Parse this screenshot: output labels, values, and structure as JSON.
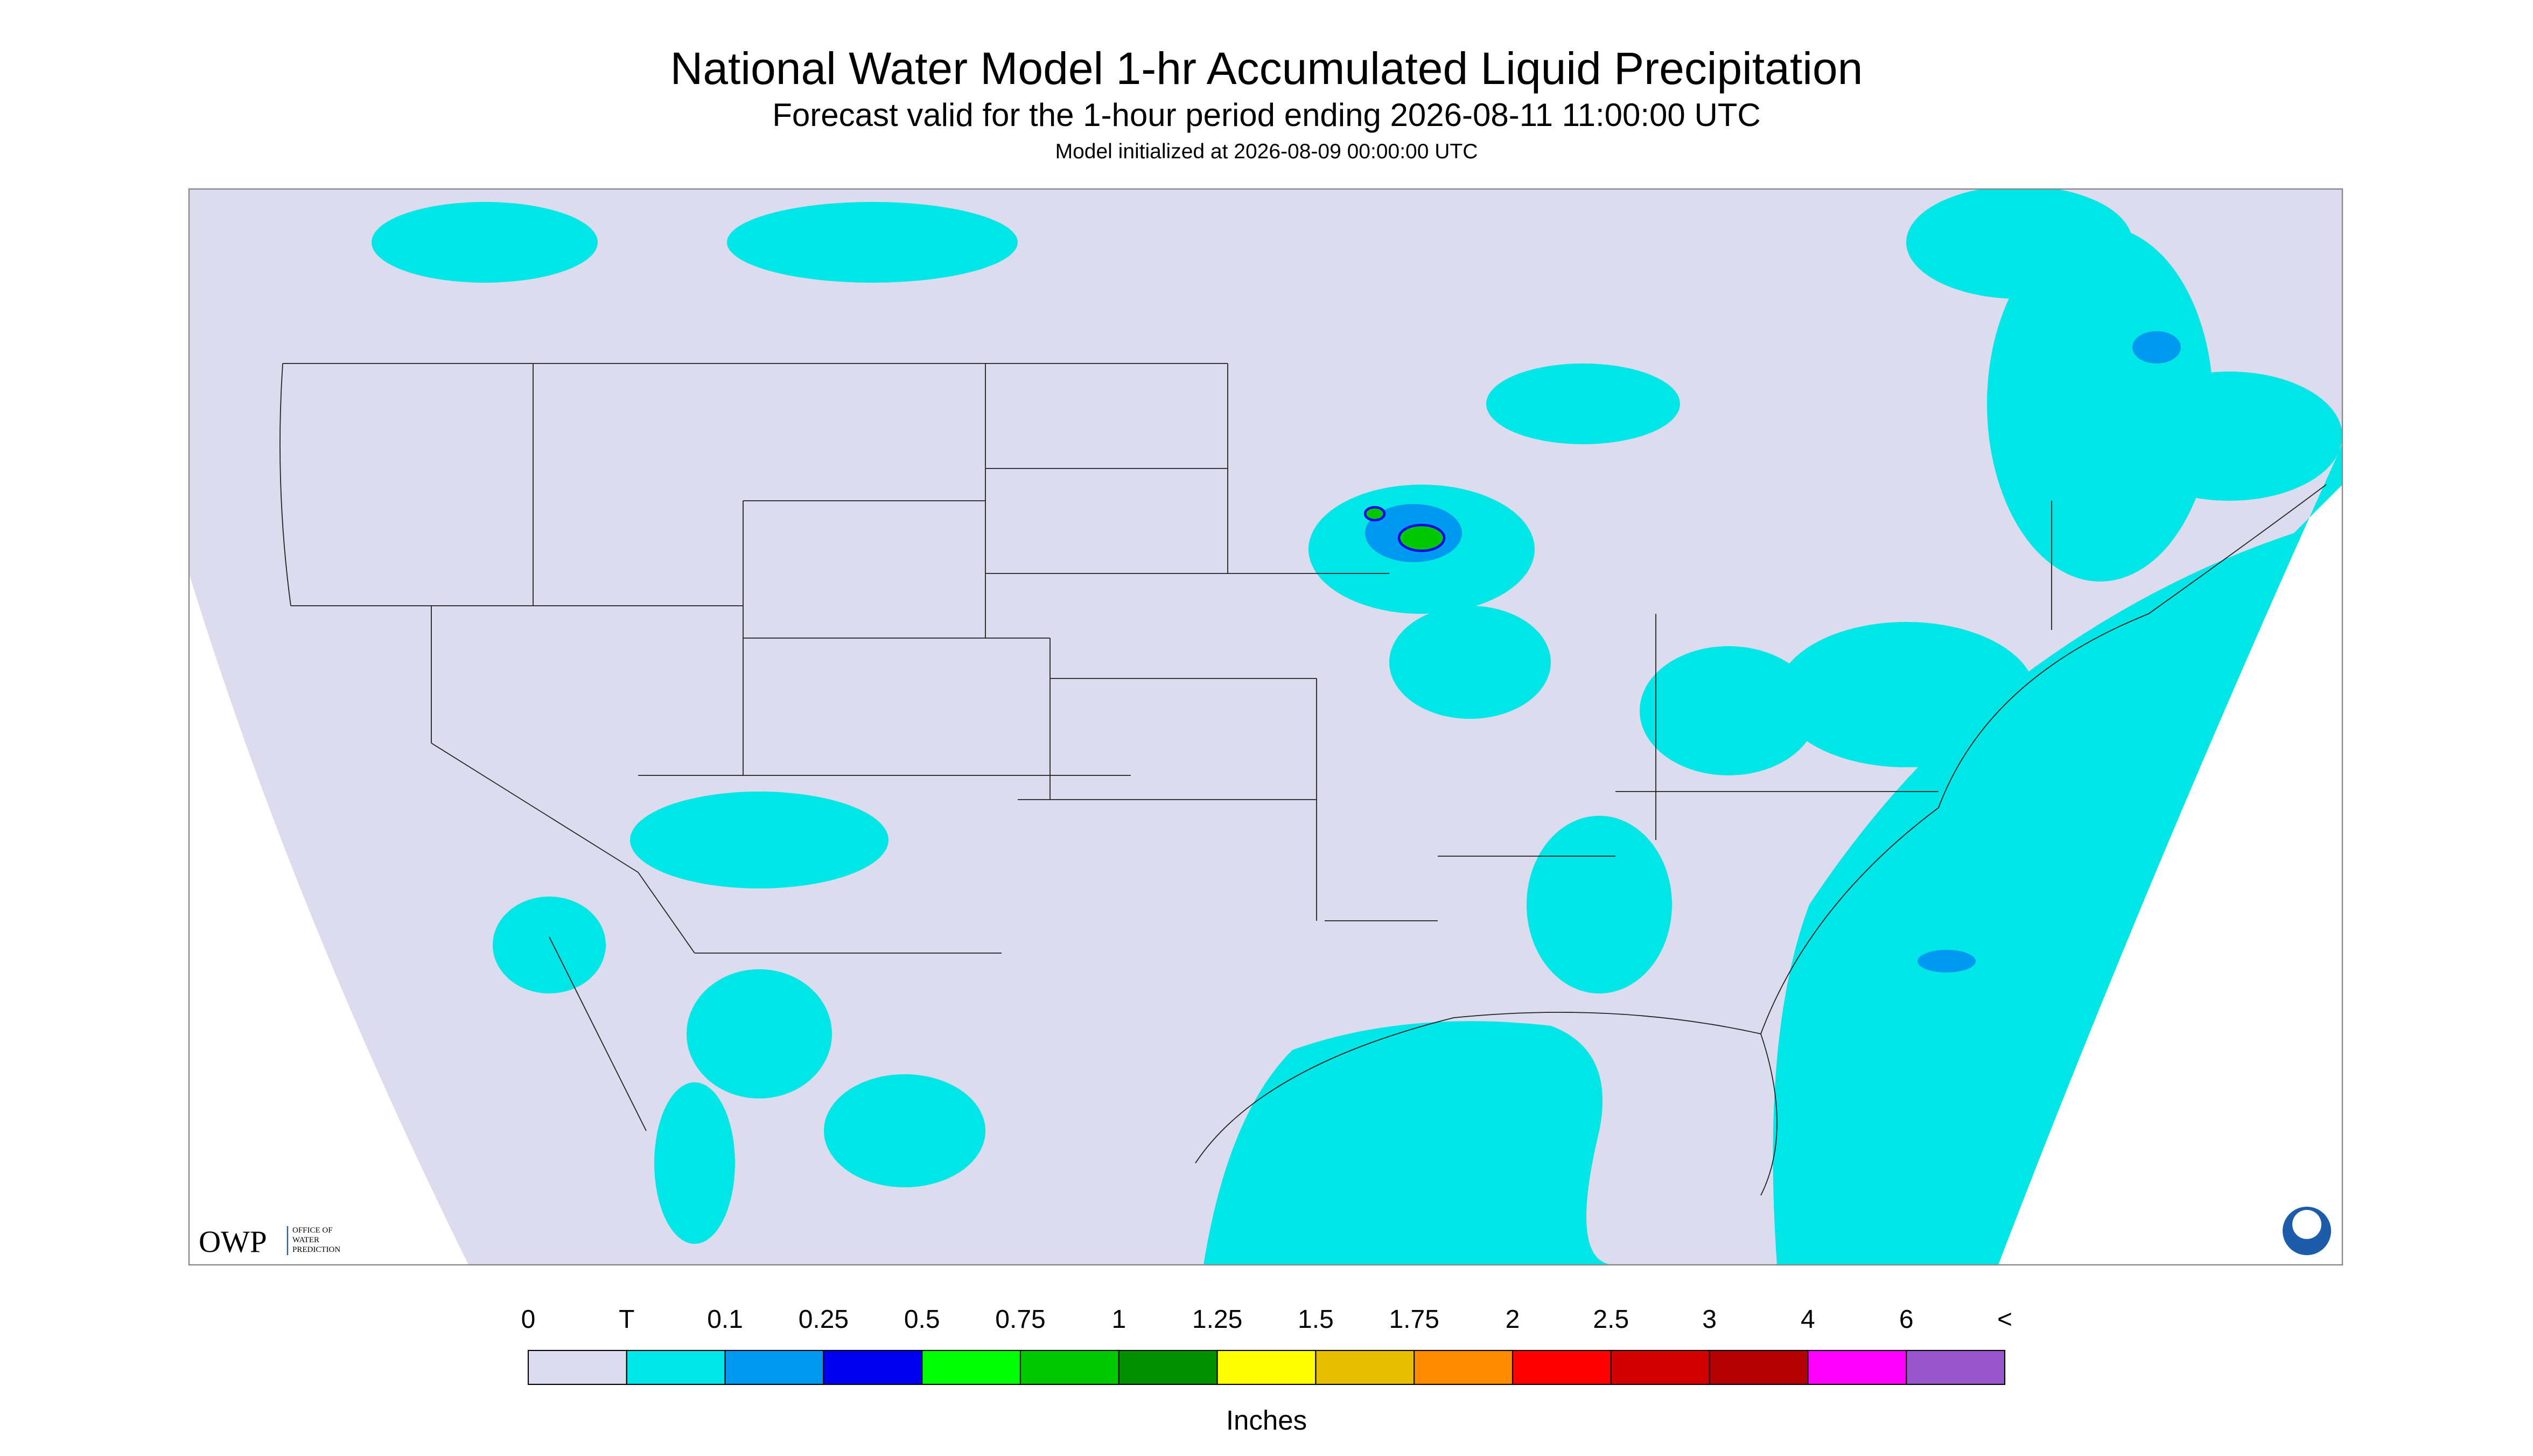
{
  "header": {
    "title": "National Water Model 1-hr Accumulated Liquid Precipitation",
    "subtitle": "Forecast valid for the 1-hour period ending 2026-08-11 11:00:00 UTC",
    "init": "Model initialized at 2026-08-09 00:00:00 UTC"
  },
  "legend": {
    "labels": [
      "0",
      "T",
      "0.1",
      "0.25",
      "0.5",
      "0.75",
      "1",
      "1.25",
      "1.5",
      "1.75",
      "2",
      "2.5",
      "3",
      "4",
      "6",
      "<"
    ],
    "colors": [
      "#dcdcee",
      "#00e6e6",
      "#0099f0",
      "#0000f0",
      "#00ff00",
      "#00c800",
      "#009000",
      "#ffff00",
      "#e6c000",
      "#ff8c00",
      "#ff0000",
      "#d40000",
      "#b40000",
      "#ff00ff",
      "#9955cc"
    ],
    "units": "Inches"
  },
  "logo": {
    "owp": "OWP",
    "office": [
      "OFFICE OF",
      "WATER",
      "PREDICTION"
    ]
  }
}
